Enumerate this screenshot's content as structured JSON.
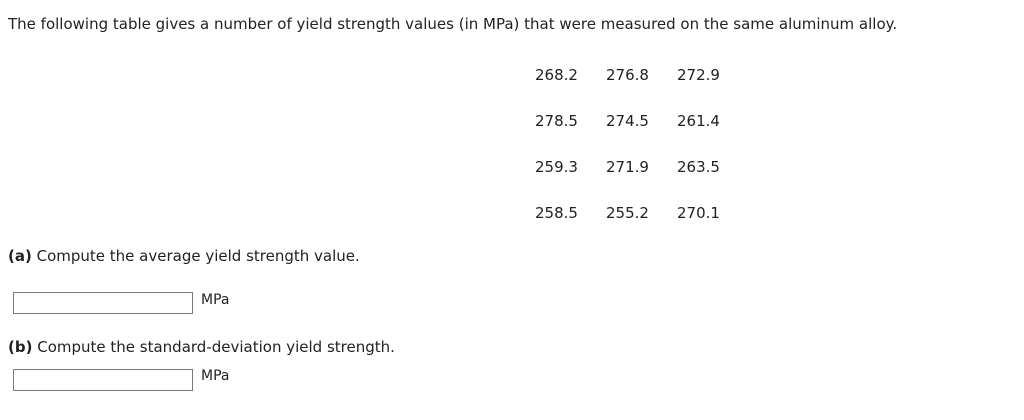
{
  "intro": "The following table gives a number of yield strength values (in MPa) that were measured on the same aluminum alloy.",
  "table": {
    "rows": [
      [
        "268.2",
        "276.8",
        "272.9"
      ],
      [
        "278.5",
        "274.5",
        "261.4"
      ],
      [
        "259.3",
        "271.9",
        "263.5"
      ],
      [
        "258.5",
        "255.2",
        "270.1"
      ]
    ]
  },
  "part_a": {
    "label": "(a)",
    "question": "Compute the average yield strength value.",
    "value": "",
    "unit": "MPa"
  },
  "part_b": {
    "label": "(b)",
    "question": "Compute the standard-deviation yield strength.",
    "value": "",
    "unit": "MPa"
  }
}
